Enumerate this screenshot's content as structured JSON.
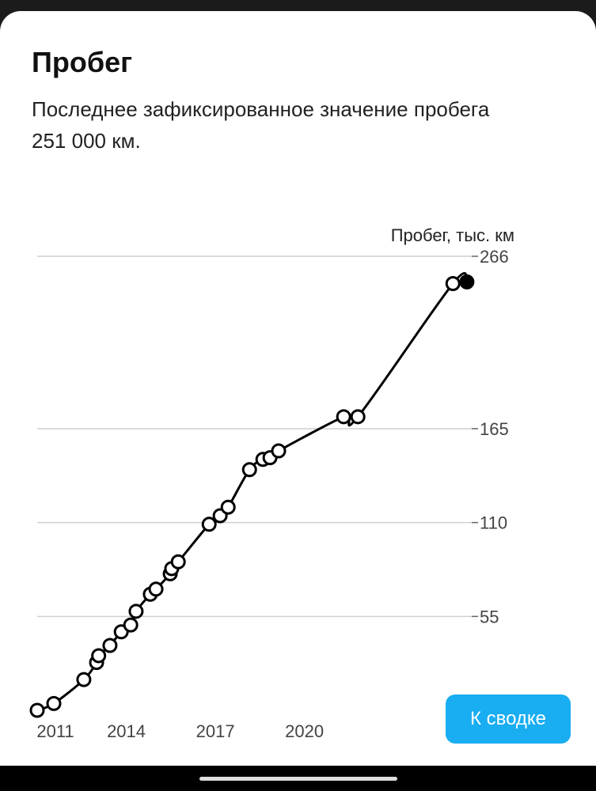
{
  "header": {
    "title": "Пробег",
    "subtitle": "Последнее зафиксированное значение пробега 251 000 км."
  },
  "button": "К сводке",
  "chart_data": {
    "type": "line",
    "y_label": "Пробег, тыс. км",
    "x": [
      2011.0,
      2011.56,
      2012.57,
      2013.0,
      2013.07,
      2013.45,
      2013.83,
      2014.15,
      2014.33,
      2014.81,
      2015.0,
      2015.48,
      2015.53,
      2015.75,
      2016.79,
      2017.16,
      2017.43,
      2018.15,
      2018.6,
      2018.84,
      2019.13,
      2021.32,
      2021.8,
      2025.0,
      2025.47
    ],
    "series": [
      {
        "name": "Пробег",
        "color": "#000000",
        "values": [
          0,
          4,
          18,
          28,
          32,
          38,
          46,
          50,
          58,
          68,
          71,
          80,
          83,
          87,
          109,
          114,
          119,
          141,
          147,
          148,
          152,
          172,
          172,
          250,
          251
        ]
      }
    ],
    "xlim": [
      2011,
      2025.5
    ],
    "xticks": [
      2011,
      2014,
      2017,
      2020
    ],
    "ylim": [
      0,
      266
    ],
    "yticks": [
      55,
      110,
      165,
      266
    ],
    "grid": true
  }
}
